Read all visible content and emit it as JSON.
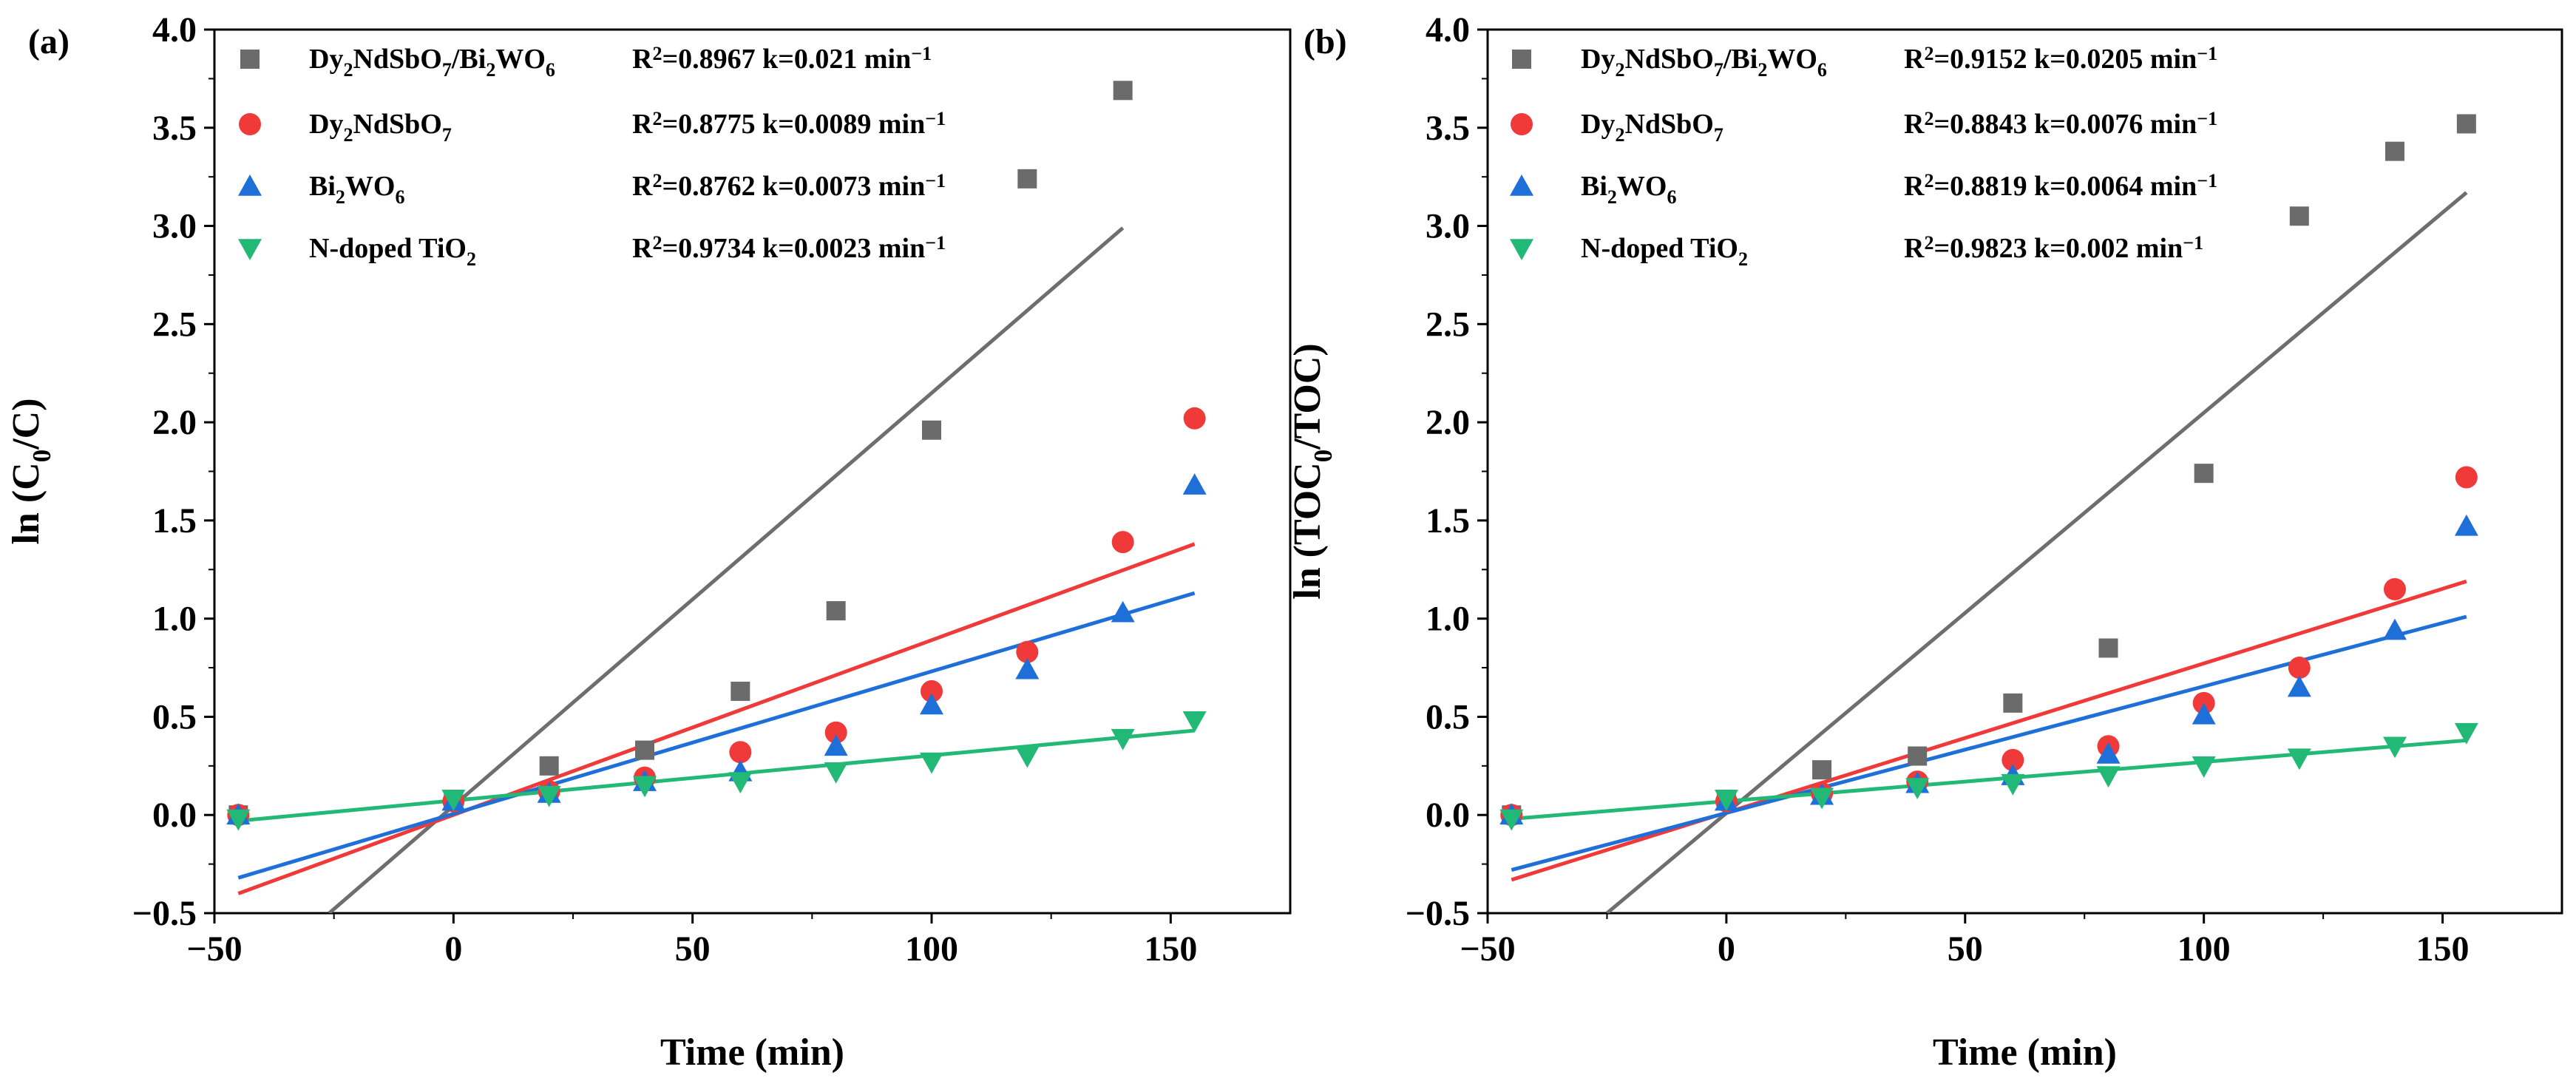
{
  "chart_data": [
    {
      "type": "scatter",
      "panel": "(a)",
      "xlabel": "Time (min)",
      "ylabel": "ln (C0/C)",
      "xlim": [
        -50,
        175
      ],
      "ylim": [
        -0.5,
        4.0
      ],
      "xticks": [
        -50,
        0,
        50,
        100,
        150
      ],
      "xtick_labels": [
        "−50",
        "0",
        "50",
        "100",
        "150"
      ],
      "yticks": [
        -0.5,
        0.0,
        0.5,
        1.0,
        1.5,
        2.0,
        2.5,
        3.0,
        3.5,
        4.0
      ],
      "ytick_labels": [
        "−0.5",
        "0.0",
        "0.5",
        "1.0",
        "1.5",
        "2.0",
        "2.5",
        "3.0",
        "3.5",
        "4.0"
      ],
      "legend_position": "top-left",
      "series": [
        {
          "name": "Dy2NdSbO7/Bi2WO6",
          "marker": "square",
          "color": "#6b6b6b",
          "fit_color": "#6e6e6e",
          "fit_label": "R2=0.8967 k=0.021 min−1",
          "x": [
            -45,
            0,
            20,
            40,
            60,
            80,
            100,
            120,
            140
          ],
          "y": [
            0.0,
            0.08,
            0.25,
            0.33,
            0.63,
            1.04,
            1.96,
            3.24,
            3.69
          ],
          "fit_x": [
            -26,
            140
          ],
          "fit_y": [
            -0.5,
            2.99
          ]
        },
        {
          "name": "Dy2NdSbO7",
          "marker": "circle",
          "color": "#f03a3a",
          "fit_color": "#f03a3a",
          "fit_label": "R2=0.8775 k=0.0089 min−1",
          "x": [
            -45,
            0,
            20,
            40,
            60,
            80,
            100,
            120,
            140,
            155
          ],
          "y": [
            0.0,
            0.07,
            0.12,
            0.19,
            0.32,
            0.42,
            0.63,
            0.83,
            1.39,
            2.02
          ],
          "fit_x": [
            -45,
            155
          ],
          "fit_y": [
            -0.4,
            1.38
          ]
        },
        {
          "name": "Bi2WO6",
          "marker": "triangle-up",
          "color": "#1f6fd8",
          "fit_color": "#1f6fd8",
          "fit_label": "R2=0.8762 k=0.0073 min−1",
          "x": [
            -45,
            0,
            20,
            40,
            60,
            80,
            100,
            120,
            140,
            155
          ],
          "y": [
            0.0,
            0.07,
            0.11,
            0.17,
            0.22,
            0.35,
            0.56,
            0.74,
            1.03,
            1.68
          ],
          "fit_x": [
            -45,
            155
          ],
          "fit_y": [
            -0.32,
            1.13
          ]
        },
        {
          "name": "N-doped TiO2",
          "marker": "triangle-down",
          "color": "#22b876",
          "fit_color": "#22b876",
          "fit_label": "R2=0.9734 k=0.0023 min−1",
          "x": [
            -45,
            0,
            20,
            40,
            60,
            80,
            100,
            120,
            140,
            155
          ],
          "y": [
            -0.02,
            0.08,
            0.1,
            0.15,
            0.17,
            0.22,
            0.27,
            0.3,
            0.39,
            0.48
          ],
          "fit_x": [
            -45,
            155
          ],
          "fit_y": [
            -0.03,
            0.43
          ]
        }
      ]
    },
    {
      "type": "scatter",
      "panel": "(b)",
      "xlabel": "Time (min)",
      "ylabel": "ln (TOC0/TOC)",
      "xlim": [
        -50,
        175
      ],
      "ylim": [
        -0.5,
        4.0
      ],
      "xticks": [
        -50,
        0,
        50,
        100,
        150
      ],
      "xtick_labels": [
        "−50",
        "0",
        "50",
        "100",
        "150"
      ],
      "yticks": [
        -0.5,
        0.0,
        0.5,
        1.0,
        1.5,
        2.0,
        2.5,
        3.0,
        3.5,
        4.0
      ],
      "ytick_labels": [
        "−0.5",
        "0.0",
        "0.5",
        "1.0",
        "1.5",
        "2.0",
        "2.5",
        "3.0",
        "3.5",
        "4.0"
      ],
      "legend_position": "top-left",
      "series": [
        {
          "name": "Dy2NdSbO7/Bi2WO6",
          "marker": "square",
          "color": "#6b6b6b",
          "fit_color": "#6e6e6e",
          "fit_label": "R2=0.9152 k=0.0205 min−1",
          "x": [
            -45,
            0,
            20,
            40,
            60,
            80,
            100,
            120,
            140,
            155
          ],
          "y": [
            0.0,
            0.08,
            0.23,
            0.3,
            0.57,
            0.85,
            1.74,
            3.05,
            3.38,
            3.52
          ],
          "fit_x": [
            -25,
            155
          ],
          "fit_y": [
            -0.5,
            3.17
          ]
        },
        {
          "name": "Dy2NdSbO7",
          "marker": "circle",
          "color": "#f03a3a",
          "fit_color": "#f03a3a",
          "fit_label": "R2=0.8843 k=0.0076 min−1",
          "x": [
            -45,
            0,
            20,
            40,
            60,
            80,
            100,
            120,
            140,
            155
          ],
          "y": [
            0.0,
            0.07,
            0.11,
            0.17,
            0.28,
            0.35,
            0.57,
            0.75,
            1.15,
            1.72
          ],
          "fit_x": [
            -45,
            155
          ],
          "fit_y": [
            -0.33,
            1.19
          ]
        },
        {
          "name": "Bi2WO6",
          "marker": "triangle-up",
          "color": "#1f6fd8",
          "fit_color": "#1f6fd8",
          "fit_label": "R2=0.8819 k=0.0064 min−1",
          "x": [
            -45,
            0,
            20,
            40,
            60,
            80,
            100,
            120,
            140,
            155
          ],
          "y": [
            0.0,
            0.07,
            0.1,
            0.16,
            0.2,
            0.31,
            0.51,
            0.65,
            0.94,
            1.47
          ],
          "fit_x": [
            -45,
            155
          ],
          "fit_y": [
            -0.28,
            1.01
          ]
        },
        {
          "name": "N-doped TiO2",
          "marker": "triangle-down",
          "color": "#22b876",
          "fit_color": "#22b876",
          "fit_label": "R2=0.9823 k=0.002 min−1",
          "x": [
            -45,
            0,
            20,
            40,
            60,
            80,
            100,
            120,
            140,
            155
          ],
          "y": [
            -0.02,
            0.08,
            0.09,
            0.14,
            0.16,
            0.2,
            0.25,
            0.29,
            0.35,
            0.42
          ],
          "fit_x": [
            -45,
            155
          ],
          "fit_y": [
            -0.02,
            0.38
          ]
        }
      ]
    }
  ]
}
